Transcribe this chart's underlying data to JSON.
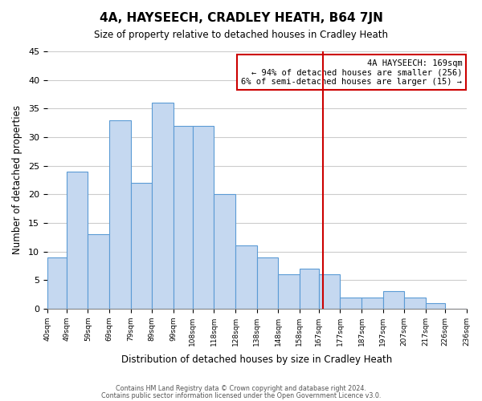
{
  "title": "4A, HAYSEECH, CRADLEY HEATH, B64 7JN",
  "subtitle": "Size of property relative to detached houses in Cradley Heath",
  "xlabel": "Distribution of detached houses by size in Cradley Heath",
  "ylabel": "Number of detached properties",
  "footer_line1": "Contains HM Land Registry data © Crown copyright and database right 2024.",
  "footer_line2": "Contains public sector information licensed under the Open Government Licence v3.0.",
  "bar_edges": [
    40,
    49,
    59,
    69,
    79,
    89,
    99,
    108,
    118,
    128,
    138,
    148,
    158,
    167,
    177,
    187,
    197,
    207,
    217,
    226,
    236
  ],
  "bar_heights": [
    9,
    24,
    13,
    33,
    22,
    36,
    32,
    32,
    20,
    11,
    9,
    6,
    7,
    6,
    2,
    2,
    3,
    2,
    1,
    0
  ],
  "tick_labels": [
    "40sqm",
    "49sqm",
    "59sqm",
    "69sqm",
    "79sqm",
    "89sqm",
    "99sqm",
    "108sqm",
    "118sqm",
    "128sqm",
    "138sqm",
    "148sqm",
    "158sqm",
    "167sqm",
    "177sqm",
    "187sqm",
    "197sqm",
    "207sqm",
    "217sqm",
    "226sqm",
    "236sqm"
  ],
  "bar_color": "#c5d8f0",
  "bar_edge_color": "#5b9bd5",
  "vline_x": 169,
  "vline_color": "#cc0000",
  "annotation_title": "4A HAYSEECH: 169sqm",
  "annotation_line1": "← 94% of detached houses are smaller (256)",
  "annotation_line2": "6% of semi-detached houses are larger (15) →",
  "annotation_box_edge": "#cc0000",
  "ylim": [
    0,
    45
  ],
  "yticks": [
    0,
    5,
    10,
    15,
    20,
    25,
    30,
    35,
    40,
    45
  ],
  "background_color": "#ffffff",
  "grid_color": "#cccccc"
}
